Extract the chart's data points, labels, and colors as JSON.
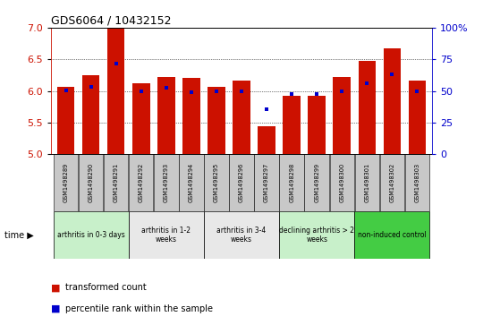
{
  "title": "GDS6064 / 10432152",
  "samples": [
    "GSM1498289",
    "GSM1498290",
    "GSM1498291",
    "GSM1498292",
    "GSM1498293",
    "GSM1498294",
    "GSM1498295",
    "GSM1498296",
    "GSM1498297",
    "GSM1498298",
    "GSM1498299",
    "GSM1498300",
    "GSM1498301",
    "GSM1498302",
    "GSM1498303"
  ],
  "red_values": [
    6.07,
    6.25,
    7.0,
    6.12,
    6.22,
    6.2,
    6.06,
    6.17,
    5.44,
    5.93,
    5.93,
    6.22,
    6.47,
    6.68,
    6.17
  ],
  "blue_values": [
    6.01,
    6.06,
    6.43,
    5.99,
    6.05,
    5.98,
    5.99,
    5.99,
    5.71,
    5.95,
    5.95,
    5.99,
    6.12,
    6.27,
    6.0
  ],
  "ymin": 5.0,
  "ymax": 7.0,
  "yright_min": 0,
  "yright_max": 100,
  "groups": [
    {
      "label": "arthritis in 0-3 days",
      "start": 0,
      "end": 3,
      "color": "#c8f0ca"
    },
    {
      "label": "arthritis in 1-2\nweeks",
      "start": 3,
      "end": 6,
      "color": "#e8e8e8"
    },
    {
      "label": "arthritis in 3-4\nweeks",
      "start": 6,
      "end": 9,
      "color": "#e8e8e8"
    },
    {
      "label": "declining arthritis > 2\nweeks",
      "start": 9,
      "end": 12,
      "color": "#c8f0ca"
    },
    {
      "label": "non-induced control",
      "start": 12,
      "end": 15,
      "color": "#44cc44"
    }
  ],
  "bar_color": "#cc1100",
  "dot_color": "#0000cc",
  "yticks_left": [
    5.0,
    5.5,
    6.0,
    6.5,
    7.0
  ],
  "yticks_right": [
    0,
    25,
    50,
    75,
    100
  ],
  "sample_box_color": "#c8c8c8",
  "legend_red_label": "transformed count",
  "legend_blue_label": "percentile rank within the sample"
}
